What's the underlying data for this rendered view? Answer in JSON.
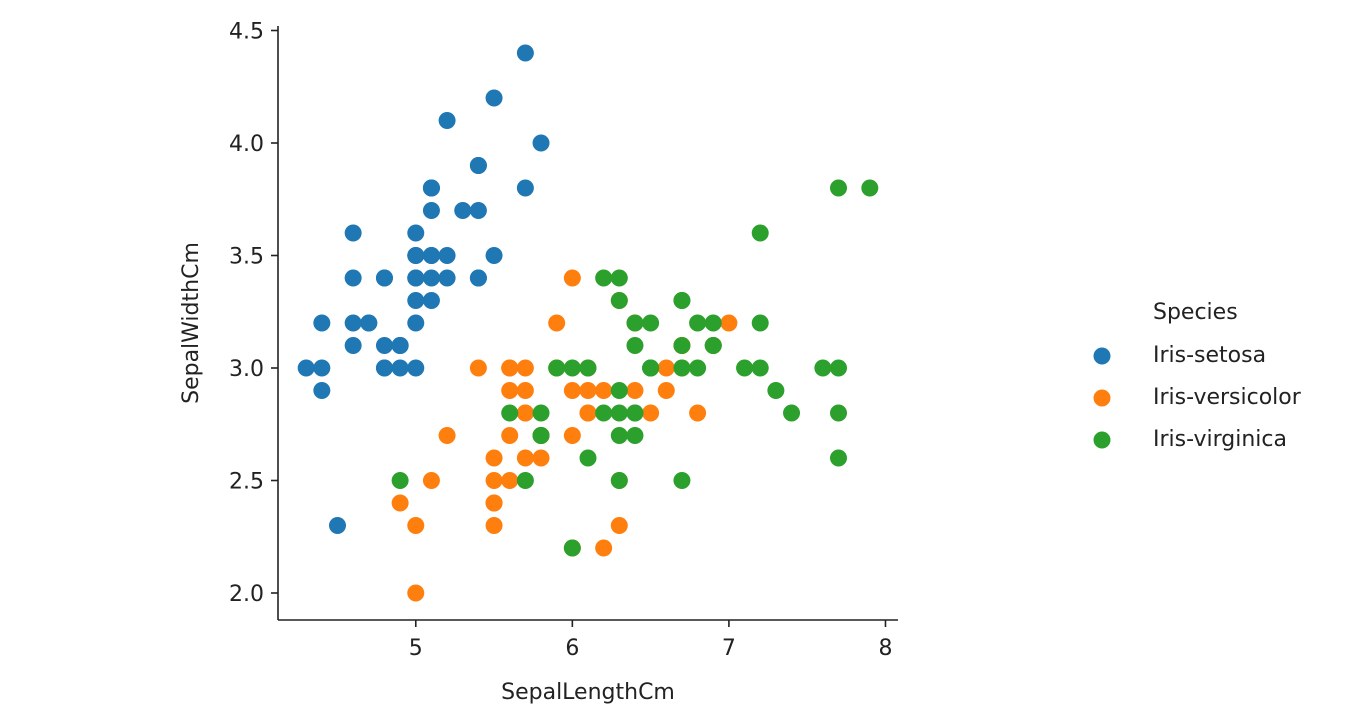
{
  "chart_data": {
    "type": "scatter",
    "title": "",
    "xlabel": "SepalLengthCm",
    "ylabel": "SepalWidthCm",
    "xlim": [
      4.12,
      8.08
    ],
    "ylim": [
      1.88,
      4.52
    ],
    "xticks": [
      5,
      6,
      7,
      8
    ],
    "yticks": [
      2.0,
      2.5,
      3.0,
      3.5,
      4.0,
      4.5
    ],
    "grid": false,
    "legend_title": "Species",
    "legend_position": "right",
    "series": [
      {
        "name": "Iris-setosa",
        "color": "#1f77b4",
        "points": [
          [
            5.1,
            3.5
          ],
          [
            4.9,
            3.0
          ],
          [
            4.7,
            3.2
          ],
          [
            4.6,
            3.1
          ],
          [
            5.0,
            3.6
          ],
          [
            5.4,
            3.9
          ],
          [
            4.6,
            3.4
          ],
          [
            5.0,
            3.4
          ],
          [
            4.4,
            2.9
          ],
          [
            4.9,
            3.1
          ],
          [
            5.4,
            3.7
          ],
          [
            4.8,
            3.4
          ],
          [
            4.8,
            3.0
          ],
          [
            4.3,
            3.0
          ],
          [
            5.8,
            4.0
          ],
          [
            5.7,
            4.4
          ],
          [
            5.4,
            3.9
          ],
          [
            5.1,
            3.5
          ],
          [
            5.7,
            3.8
          ],
          [
            5.1,
            3.8
          ],
          [
            5.4,
            3.4
          ],
          [
            5.1,
            3.7
          ],
          [
            4.6,
            3.6
          ],
          [
            5.1,
            3.3
          ],
          [
            4.8,
            3.4
          ],
          [
            5.0,
            3.0
          ],
          [
            5.0,
            3.4
          ],
          [
            5.2,
            3.5
          ],
          [
            5.2,
            3.4
          ],
          [
            4.7,
            3.2
          ],
          [
            4.8,
            3.1
          ],
          [
            5.4,
            3.4
          ],
          [
            5.2,
            4.1
          ],
          [
            5.5,
            4.2
          ],
          [
            4.9,
            3.1
          ],
          [
            5.0,
            3.2
          ],
          [
            5.5,
            3.5
          ],
          [
            4.9,
            3.1
          ],
          [
            4.4,
            3.0
          ],
          [
            5.1,
            3.4
          ],
          [
            5.0,
            3.5
          ],
          [
            4.5,
            2.3
          ],
          [
            4.4,
            3.2
          ],
          [
            5.0,
            3.5
          ],
          [
            5.1,
            3.8
          ],
          [
            4.8,
            3.0
          ],
          [
            5.1,
            3.8
          ],
          [
            4.6,
            3.2
          ],
          [
            5.3,
            3.7
          ],
          [
            5.0,
            3.3
          ]
        ]
      },
      {
        "name": "Iris-versicolor",
        "color": "#ff7f0e",
        "points": [
          [
            7.0,
            3.2
          ],
          [
            6.4,
            3.2
          ],
          [
            6.9,
            3.1
          ],
          [
            5.5,
            2.3
          ],
          [
            6.5,
            2.8
          ],
          [
            5.7,
            2.8
          ],
          [
            6.3,
            3.3
          ],
          [
            4.9,
            2.4
          ],
          [
            6.6,
            2.9
          ],
          [
            5.2,
            2.7
          ],
          [
            5.0,
            2.0
          ],
          [
            5.9,
            3.0
          ],
          [
            6.0,
            2.2
          ],
          [
            6.1,
            2.9
          ],
          [
            5.6,
            2.9
          ],
          [
            6.7,
            3.1
          ],
          [
            5.6,
            3.0
          ],
          [
            5.8,
            2.7
          ],
          [
            6.2,
            2.2
          ],
          [
            5.6,
            2.5
          ],
          [
            5.9,
            3.2
          ],
          [
            6.1,
            2.8
          ],
          [
            6.3,
            2.5
          ],
          [
            6.1,
            2.8
          ],
          [
            6.4,
            2.9
          ],
          [
            6.6,
            3.0
          ],
          [
            6.8,
            2.8
          ],
          [
            6.7,
            3.0
          ],
          [
            6.0,
            2.9
          ],
          [
            5.7,
            2.6
          ],
          [
            5.5,
            2.4
          ],
          [
            5.5,
            2.4
          ],
          [
            5.8,
            2.7
          ],
          [
            6.0,
            2.7
          ],
          [
            5.4,
            3.0
          ],
          [
            6.0,
            3.4
          ],
          [
            6.7,
            3.1
          ],
          [
            6.3,
            2.3
          ],
          [
            5.6,
            3.0
          ],
          [
            5.5,
            2.5
          ],
          [
            5.5,
            2.6
          ],
          [
            6.1,
            3.0
          ],
          [
            5.8,
            2.6
          ],
          [
            5.0,
            2.3
          ],
          [
            5.6,
            2.7
          ],
          [
            5.7,
            3.0
          ],
          [
            5.7,
            2.9
          ],
          [
            6.2,
            2.9
          ],
          [
            5.1,
            2.5
          ],
          [
            5.7,
            2.8
          ]
        ]
      },
      {
        "name": "Iris-virginica",
        "color": "#2ca02c",
        "points": [
          [
            6.3,
            3.3
          ],
          [
            5.8,
            2.7
          ],
          [
            7.1,
            3.0
          ],
          [
            6.3,
            2.9
          ],
          [
            6.5,
            3.0
          ],
          [
            7.6,
            3.0
          ],
          [
            4.9,
            2.5
          ],
          [
            7.3,
            2.9
          ],
          [
            6.7,
            2.5
          ],
          [
            7.2,
            3.6
          ],
          [
            6.5,
            3.2
          ],
          [
            6.4,
            2.7
          ],
          [
            6.8,
            3.0
          ],
          [
            5.7,
            2.5
          ],
          [
            5.8,
            2.8
          ],
          [
            6.4,
            3.2
          ],
          [
            6.5,
            3.0
          ],
          [
            7.7,
            3.8
          ],
          [
            7.7,
            2.6
          ],
          [
            6.0,
            2.2
          ],
          [
            6.9,
            3.2
          ],
          [
            5.6,
            2.8
          ],
          [
            7.7,
            2.8
          ],
          [
            6.3,
            2.7
          ],
          [
            6.7,
            3.3
          ],
          [
            7.2,
            3.2
          ],
          [
            6.2,
            2.8
          ],
          [
            6.1,
            3.0
          ],
          [
            6.4,
            2.8
          ],
          [
            7.2,
            3.0
          ],
          [
            7.4,
            2.8
          ],
          [
            7.9,
            3.8
          ],
          [
            6.4,
            2.8
          ],
          [
            6.3,
            2.8
          ],
          [
            6.1,
            2.6
          ],
          [
            7.7,
            3.0
          ],
          [
            6.3,
            3.4
          ],
          [
            6.4,
            3.1
          ],
          [
            6.0,
            3.0
          ],
          [
            6.9,
            3.1
          ],
          [
            6.7,
            3.1
          ],
          [
            6.9,
            3.1
          ],
          [
            5.8,
            2.7
          ],
          [
            6.8,
            3.2
          ],
          [
            6.7,
            3.3
          ],
          [
            6.7,
            3.0
          ],
          [
            6.3,
            2.5
          ],
          [
            6.5,
            3.0
          ],
          [
            6.2,
            3.4
          ],
          [
            5.9,
            3.0
          ]
        ]
      }
    ]
  }
}
